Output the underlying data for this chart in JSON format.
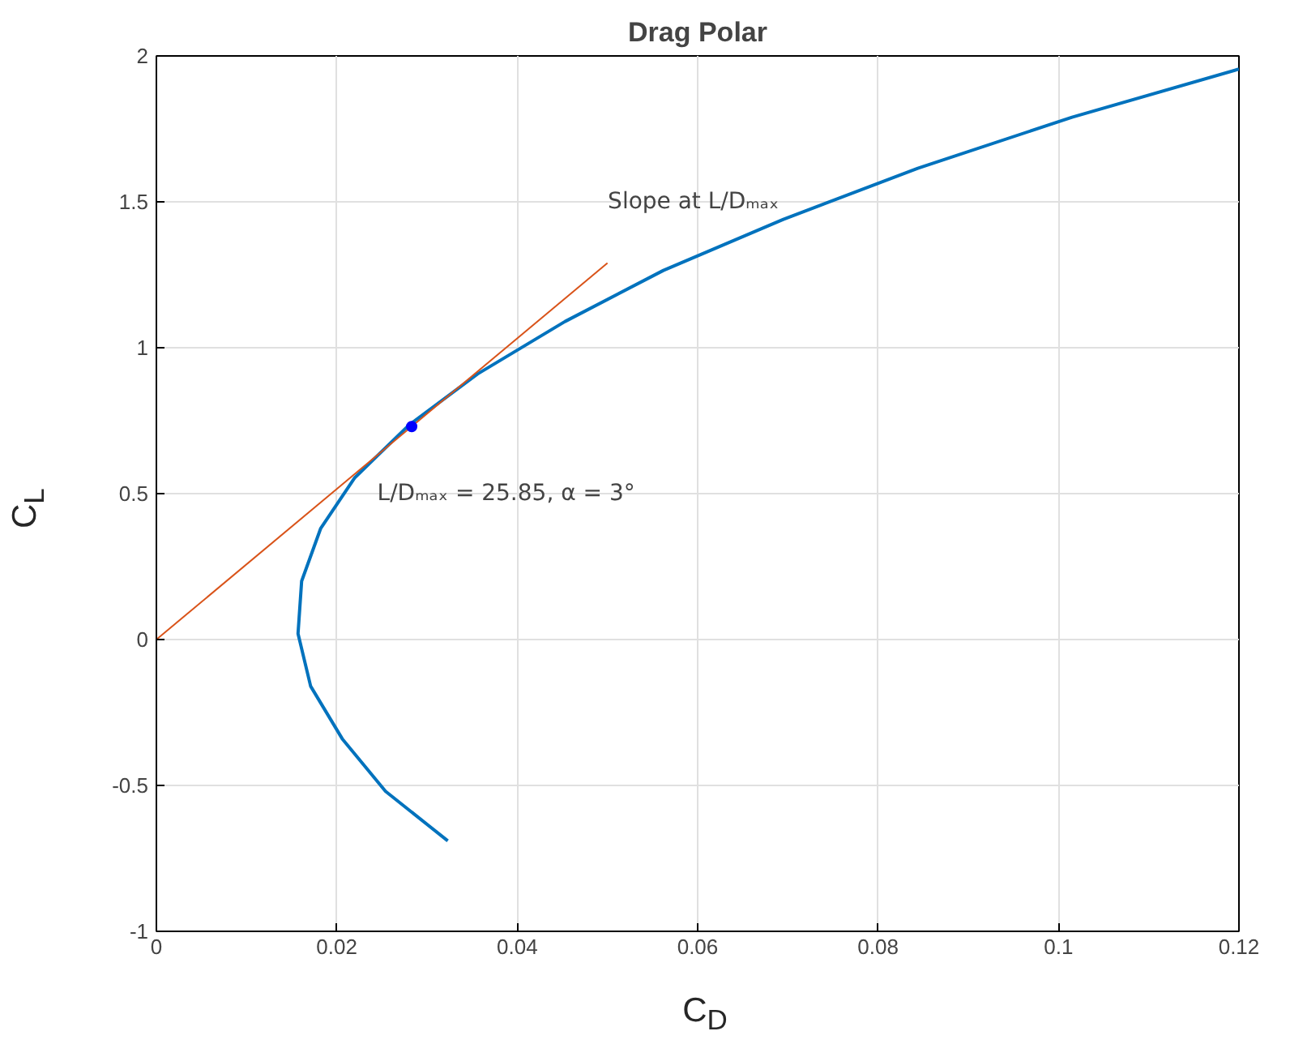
{
  "chart_data": {
    "type": "line",
    "title": "Drag Polar",
    "xlabel": "C$_{D}$",
    "ylabel": "C$_{L}$",
    "xlim": [
      0,
      0.12
    ],
    "ylim": [
      -1,
      2
    ],
    "xticks": [
      0,
      0.02,
      0.04,
      0.06,
      0.08,
      0.1,
      0.12
    ],
    "yticks": [
      -1,
      -0.5,
      0,
      0.5,
      1,
      1.5,
      2
    ],
    "grid": true,
    "series": [
      {
        "type": "line",
        "color": "#0072bd",
        "line_style": "solid",
        "x": [
          0.0323,
          0.0254,
          0.0206,
          0.0171,
          0.0157,
          0.0161,
          0.0182,
          0.022,
          0.028,
          0.0356,
          0.0453,
          0.0562,
          0.0695,
          0.0844,
          0.1015,
          0.12
        ],
        "values": [
          -0.69,
          -0.52,
          -0.34,
          -0.16,
          0.02,
          0.2,
          0.38,
          0.555,
          0.735,
          0.91,
          1.09,
          1.265,
          1.44,
          1.615,
          1.79,
          1.955
        ]
      },
      {
        "type": "line",
        "color": "#d95319",
        "line_style": "solid",
        "x": [
          0,
          0.05
        ],
        "values": [
          0,
          1.29
        ]
      },
      {
        "type": "scatter",
        "color": "#0000ff",
        "marker": "circle",
        "x": [
          0.0283
        ],
        "values": [
          0.73
        ]
      }
    ],
    "annotations": [
      "Slope at L/Dₘₐₓ",
      "L/Dₘₐₓ = 25.85, α = 3°"
    ]
  }
}
